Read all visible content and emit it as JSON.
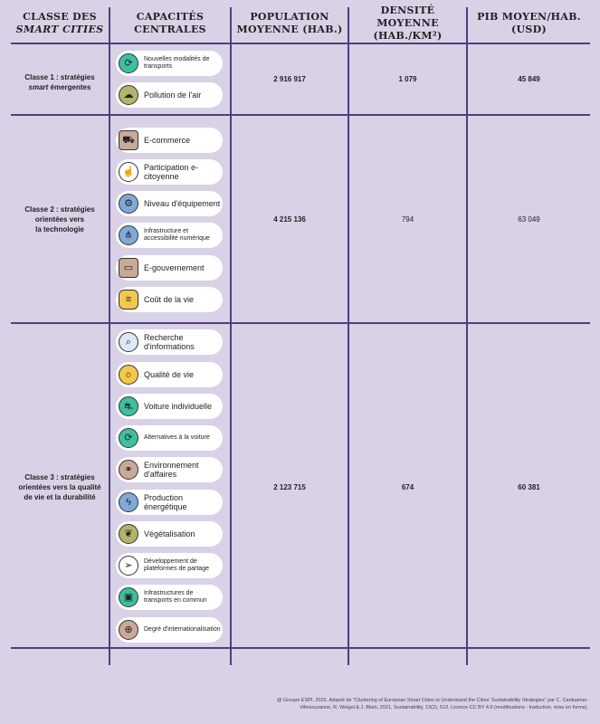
{
  "header": {
    "col1_line1": "CLASSE DES",
    "col1_line2": "SMART CITIES",
    "col2_line1": "CAPACITÉS",
    "col2_line2": "CENTRALES",
    "col3_line1": "POPULATION",
    "col3_line2": "MOYENNE (HAB.)",
    "col4_line1": "DENSITÉ MOYENNE",
    "col4_line2": "(HAB./KM²)",
    "col5_line1": "PIB MOYEN/HAB.",
    "col5_line2": "(USD)"
  },
  "classes": [
    {
      "label_prefix": "Classe 1 : stratégies",
      "label_italic": "smart",
      "label_suffix": "émergentes",
      "population": "2 916 917",
      "density": "1 079",
      "gdp": "45 849",
      "capabilities": [
        {
          "label": "Nouvelles modalités de transports",
          "icon": "transport-cycle-icon",
          "color": "#3dbfa0"
        },
        {
          "label": "Pollution de l'air",
          "icon": "cloud-icon",
          "color": "#b5b26b"
        }
      ]
    },
    {
      "label_line1": "Classe 2 : stratégies",
      "label_line2": "orientées vers",
      "label_line3": "la technologie",
      "population": "4 215 136",
      "density": "794",
      "gdp": "63 049",
      "capabilities": [
        {
          "label": "E-commerce",
          "icon": "shopping-cart-icon",
          "color": "#c9a998"
        },
        {
          "label": "Participation e-citoyenne",
          "icon": "hand-tap-icon",
          "color": "#ffffff"
        },
        {
          "label": "Niveau d'équipement",
          "icon": "equipment-icon",
          "color": "#7fa9d6"
        },
        {
          "label": "Infrastructure et accessibilité numérique",
          "icon": "network-icon",
          "color": "#7fa9d6"
        },
        {
          "label": "E-gouvernement",
          "icon": "computer-icon",
          "color": "#c9a998"
        },
        {
          "label": "Coût de la vie",
          "icon": "coins-icon",
          "color": "#f2c94c"
        }
      ]
    },
    {
      "label_line1": "Classe 3 : stratégies",
      "label_line2": "orientées vers la qualité",
      "label_line3": "de vie et la durabilité",
      "population": "2 123 715",
      "density": "674",
      "gdp": "60 381",
      "capabilities": [
        {
          "label": "Recherche d'informations",
          "icon": "magnifier-icon",
          "color": "#dde8f5"
        },
        {
          "label": "Qualité de vie",
          "icon": "sun-smile-icon",
          "color": "#f2c94c"
        },
        {
          "label": "Voiture individuelle",
          "icon": "car-icon",
          "color": "#3dbfa0"
        },
        {
          "label": "Alternatives à la voiture",
          "icon": "transport-cycle-icon",
          "color": "#3dbfa0"
        },
        {
          "label": "Environnement d'affaires",
          "icon": "handshake-icon",
          "color": "#c9a998"
        },
        {
          "label": "Production énergétique",
          "icon": "lightning-icon",
          "color": "#7fa9d6"
        },
        {
          "label": "Végétalisation",
          "icon": "leaf-icon",
          "color": "#b5b26b"
        },
        {
          "label": "Développement de plateformes de partage",
          "icon": "paper-plane-icon",
          "color": "#ffffff"
        },
        {
          "label": "Infrastructures de transports en commun",
          "icon": "tram-icon",
          "color": "#3dbfa0"
        },
        {
          "label": "Degré d'internationalisation",
          "icon": "globe-icon",
          "color": "#c9a998"
        }
      ]
    }
  ],
  "footer": {
    "line1": "@ Groupe ESPI, 2022. Adapté de \"Clustering of European Smart Cities to Understand the Cities' Sustainability Strategies\" par C. Cantuarias-",
    "line2": "Villessuzanne, R. Weigel & J. Blain, 2021, Sustainability, 13(2), 513. Licence CC BY 4.0 (modifications : traduction, mise en forme)."
  }
}
